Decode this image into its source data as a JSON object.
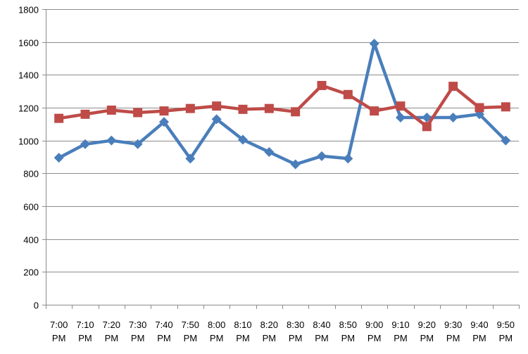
{
  "chart_data": {
    "type": "line",
    "title": "",
    "xlabel": "",
    "ylabel": "",
    "ylim": [
      0,
      1800
    ],
    "y_ticks": [
      0,
      200,
      400,
      600,
      800,
      1000,
      1200,
      1400,
      1600,
      1800
    ],
    "grid": "horizontal",
    "legend": "none",
    "categories": [
      [
        "7:00",
        "PM"
      ],
      [
        "7:10",
        "PM"
      ],
      [
        "7:20",
        "PM"
      ],
      [
        "7:30",
        "PM"
      ],
      [
        "7:40",
        "PM"
      ],
      [
        "7:50",
        "PM"
      ],
      [
        "8:00",
        "PM"
      ],
      [
        "8:10",
        "PM"
      ],
      [
        "8:20",
        "PM"
      ],
      [
        "8:30",
        "PM"
      ],
      [
        "8:40",
        "PM"
      ],
      [
        "8:50",
        "PM"
      ],
      [
        "9:00",
        "PM"
      ],
      [
        "9:10",
        "PM"
      ],
      [
        "9:20",
        "PM"
      ],
      [
        "9:30",
        "PM"
      ],
      [
        "9:40",
        "PM"
      ],
      [
        "9:50",
        "PM"
      ]
    ],
    "series": [
      {
        "color": "#4a7ebb",
        "marker": "diamond",
        "values": [
          895,
          978,
          1000,
          978,
          1113,
          890,
          1130,
          1005,
          930,
          855,
          905,
          890,
          1590,
          1140,
          1140,
          1140,
          1160,
          1000
        ]
      },
      {
        "color": "#be4b48",
        "marker": "square",
        "values": [
          1135,
          1160,
          1185,
          1170,
          1180,
          1195,
          1210,
          1190,
          1195,
          1175,
          1335,
          1280,
          1180,
          1210,
          1085,
          1330,
          1200,
          1205
        ]
      }
    ]
  }
}
